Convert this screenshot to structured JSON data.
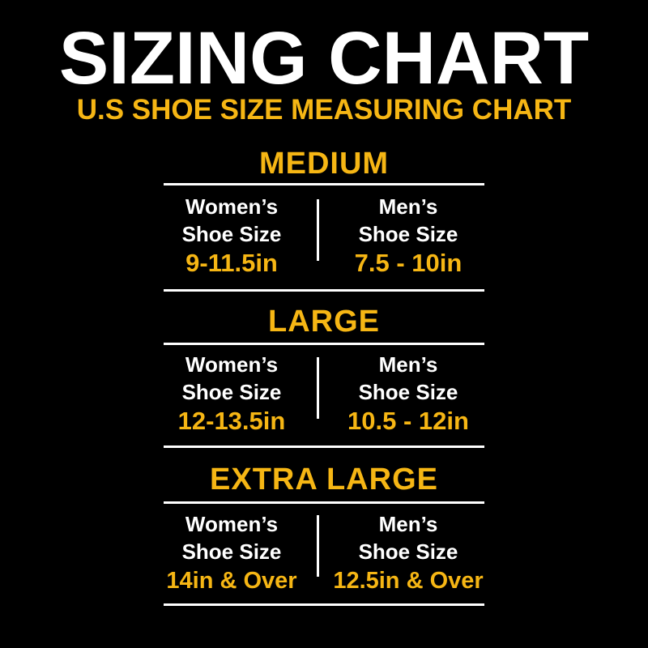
{
  "title": "SIZING CHART",
  "subtitle": "U.S SHOE SIZE MEASURING CHART",
  "colors": {
    "background": "#000000",
    "accent": "#f6b614",
    "text": "#ffffff"
  },
  "sections": [
    {
      "name": "MEDIUM",
      "women": {
        "line1": "Women’s",
        "line2": "Shoe Size",
        "value": "9-11.5in"
      },
      "men": {
        "line1": "Men’s",
        "line2": "Shoe Size",
        "value": "7.5 - 10in"
      }
    },
    {
      "name": "LARGE",
      "women": {
        "line1": "Women’s",
        "line2": "Shoe Size",
        "value": "12-13.5in"
      },
      "men": {
        "line1": "Men’s",
        "line2": "Shoe Size",
        "value": "10.5 - 12in"
      }
    },
    {
      "name": "EXTRA LARGE",
      "women": {
        "line1": "Women’s",
        "line2": "Shoe Size",
        "value": "14in & Over"
      },
      "men": {
        "line1": "Men’s",
        "line2": "Shoe Size",
        "value": "12.5in & Over"
      }
    }
  ]
}
